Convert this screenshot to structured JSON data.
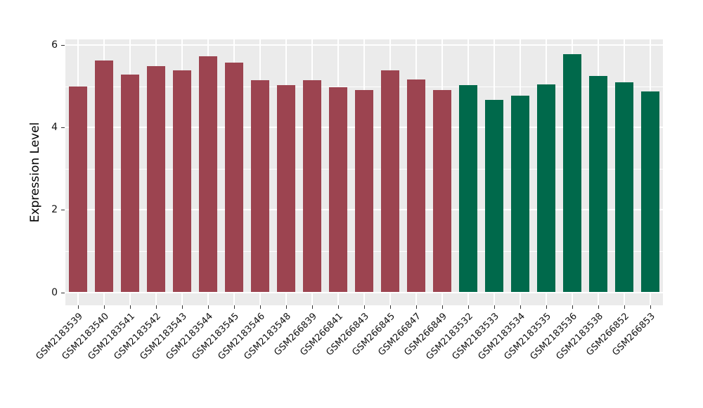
{
  "chart_data": {
    "type": "bar",
    "title": "",
    "xlabel": "",
    "ylabel": "Expression Level",
    "ylim": [
      0,
      6.14
    ],
    "yticks": [
      0,
      2,
      4,
      6
    ],
    "minor_yticks": [
      1,
      3,
      5
    ],
    "grid": "on",
    "legend": "none",
    "panel_background": "#EBEBEB",
    "gridline_color": "#ffffff",
    "group_colors": {
      "group1": "#9C4450",
      "group2": "#00694B"
    },
    "bars": [
      {
        "label": "GSM2183539",
        "value": 4.99,
        "color": "#9C4450"
      },
      {
        "label": "GSM2183540",
        "value": 5.63,
        "color": "#9C4450"
      },
      {
        "label": "GSM2183541",
        "value": 5.29,
        "color": "#9C4450"
      },
      {
        "label": "GSM2183542",
        "value": 5.49,
        "color": "#9C4450"
      },
      {
        "label": "GSM2183543",
        "value": 5.38,
        "color": "#9C4450"
      },
      {
        "label": "GSM2183544",
        "value": 5.73,
        "color": "#9C4450"
      },
      {
        "label": "GSM2183545",
        "value": 5.57,
        "color": "#9C4450"
      },
      {
        "label": "GSM2183546",
        "value": 5.15,
        "color": "#9C4450"
      },
      {
        "label": "GSM2183548",
        "value": 5.03,
        "color": "#9C4450"
      },
      {
        "label": "GSM266839",
        "value": 5.15,
        "color": "#9C4450"
      },
      {
        "label": "GSM266841",
        "value": 4.97,
        "color": "#9C4450"
      },
      {
        "label": "GSM266843",
        "value": 4.9,
        "color": "#9C4450"
      },
      {
        "label": "GSM266845",
        "value": 5.38,
        "color": "#9C4450"
      },
      {
        "label": "GSM266847",
        "value": 5.17,
        "color": "#9C4450"
      },
      {
        "label": "GSM266849",
        "value": 4.9,
        "color": "#9C4450"
      },
      {
        "label": "GSM2183532",
        "value": 5.02,
        "color": "#00694B"
      },
      {
        "label": "GSM2183533",
        "value": 4.66,
        "color": "#00694B"
      },
      {
        "label": "GSM2183534",
        "value": 4.77,
        "color": "#00694B"
      },
      {
        "label": "GSM2183535",
        "value": 5.04,
        "color": "#00694B"
      },
      {
        "label": "GSM2183536",
        "value": 5.78,
        "color": "#00694B"
      },
      {
        "label": "GSM2183538",
        "value": 5.24,
        "color": "#00694B"
      },
      {
        "label": "GSM266852",
        "value": 5.09,
        "color": "#00694B"
      },
      {
        "label": "GSM266853",
        "value": 4.87,
        "color": "#00694B"
      }
    ]
  }
}
